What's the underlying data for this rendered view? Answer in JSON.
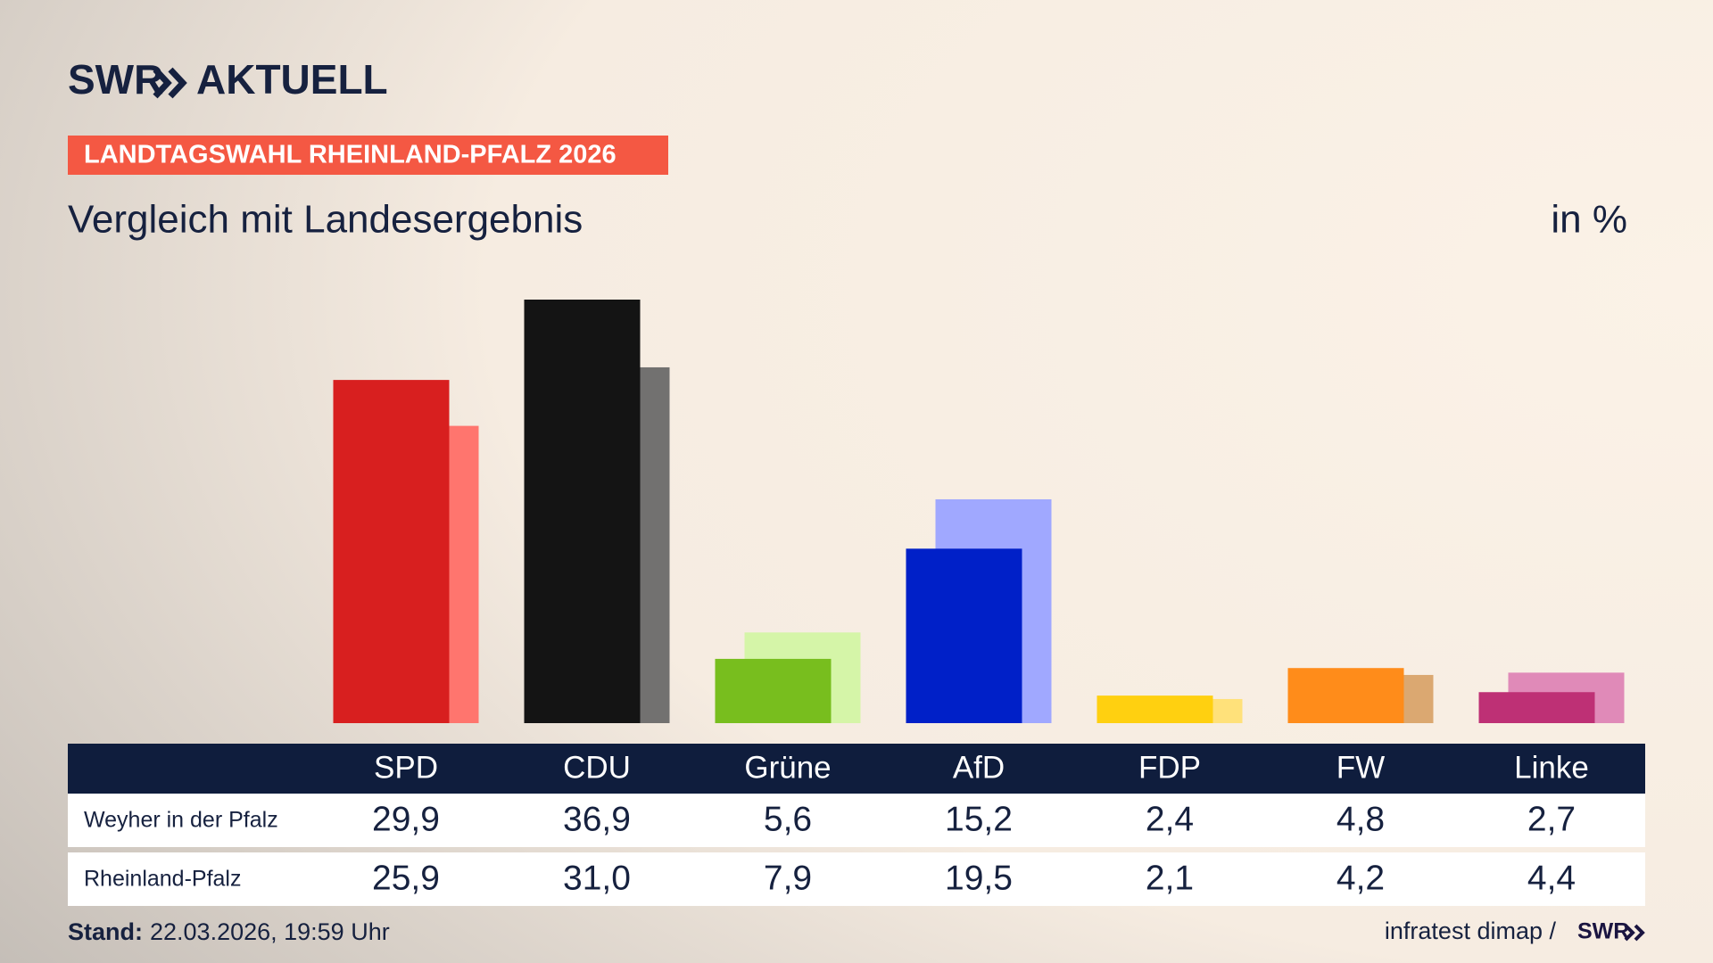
{
  "header": {
    "logo": "SWR",
    "logo_suffix": "AKTUELL",
    "tag": "LANDTAGSWAHL RHEINLAND-PFALZ 2026"
  },
  "chart_data": {
    "type": "bar",
    "title": "Vergleich mit Landesergebnis",
    "unit": "in %",
    "categories": [
      "SPD",
      "CDU",
      "Grüne",
      "AfD",
      "FDP",
      "FW",
      "Linke"
    ],
    "series": [
      {
        "name": "Weyher in der Pfalz",
        "colors": [
          "#d81f1f",
          "#141414",
          "#78be1e",
          "#0020c8",
          "#ffd010",
          "#ff8c1a",
          "#be3075"
        ],
        "values": [
          29.9,
          36.9,
          5.6,
          15.2,
          2.4,
          4.8,
          2.7
        ],
        "value_labels": [
          "29,9",
          "36,9",
          "5,6",
          "15,2",
          "2,4",
          "4,8",
          "2,7"
        ]
      },
      {
        "name": "Rheinland-Pfalz",
        "colors": [
          "#ff756e",
          "#727170",
          "#d5f5a8",
          "#a0a8ff",
          "#ffe17a",
          "#dba871",
          "#e08ab8"
        ],
        "values": [
          25.9,
          31.0,
          7.9,
          19.5,
          2.1,
          4.2,
          4.4
        ],
        "value_labels": [
          "25,9",
          "31,0",
          "7,9",
          "19,5",
          "2,1",
          "4,2",
          "4,4"
        ]
      }
    ]
  },
  "footer": {
    "stand_label": "Stand:",
    "stand": "22.03.2026, 19:59 Uhr",
    "source": "infratest dimap /",
    "source_logo": "SWR"
  }
}
